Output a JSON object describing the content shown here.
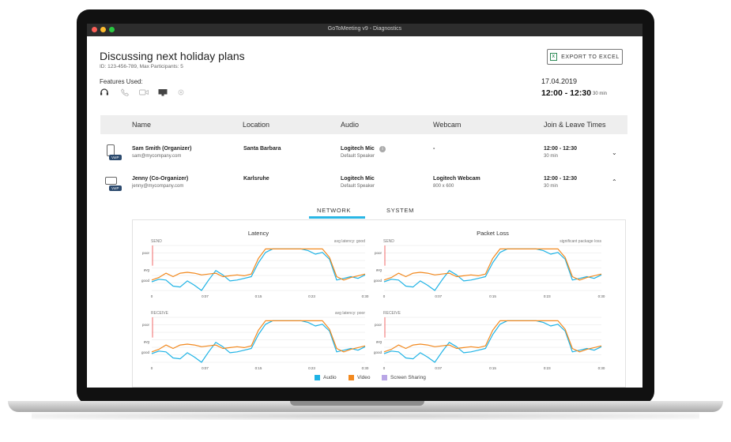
{
  "window": {
    "title": "GoToMeeting v9 - Diagnostics"
  },
  "meeting": {
    "title": "Discussing next holiday plans",
    "meta": "ID: 123-456-789, Max Participants: 5",
    "features_label": "Features Used:",
    "date": "17.04.2019",
    "time": "12:00 - 12:30",
    "duration": "30 min"
  },
  "toolbar": {
    "export_label": "EXPORT TO EXCEL",
    "excel_icon": "X"
  },
  "table": {
    "headers": [
      "Name",
      "Location",
      "Audio",
      "Webcam",
      "Join & Leave Times"
    ],
    "rows": [
      {
        "name": "Sam Smith (Organizer)",
        "email": "sam@mycompany.com",
        "badge": "VoIP",
        "location": "Santa Barbara",
        "audio": "Logitech Mic",
        "audio_sub": "Default Speaker",
        "webcam": "-",
        "webcam_sub": "",
        "times": "12:00 - 12:30",
        "duration": "30 min",
        "device": "phone-icon"
      },
      {
        "name": "Jenny (Co-Organizer)",
        "email": "jenny@mycompany.com",
        "badge": "VoIP",
        "location": "Karlsruhe",
        "audio": "Logitech Mic",
        "audio_sub": "Default Speaker",
        "webcam": "Logitech Webcam",
        "webcam_sub": "800 x 600",
        "times": "12:00 - 12:30",
        "duration": "30 min",
        "device": "laptop-icon"
      }
    ]
  },
  "tabs": {
    "network": "NETWORK",
    "system": "SYSTEM"
  },
  "colors": {
    "audio": "#1fb3e5",
    "video": "#f2891f",
    "screen_sharing": "#b9a6e6",
    "accent": "#29b6e5"
  },
  "legend": {
    "audio": "Audio",
    "video": "Video",
    "screen_sharing": "Screen Sharing"
  },
  "chart_data": [
    {
      "type": "line",
      "title": "Latency",
      "subtitle": "SEND",
      "annotation": "avg latency: good",
      "yticks": [
        "poor",
        "avg",
        "good"
      ],
      "xticks": [
        "0",
        "0:07",
        "0:15",
        "0:23",
        "0:30"
      ],
      "x": [
        0,
        1,
        2,
        3,
        4,
        5,
        6,
        7,
        8,
        9,
        10,
        11,
        12,
        13,
        14,
        15,
        16,
        17,
        18,
        19,
        20,
        21,
        22,
        23,
        24,
        25,
        26,
        27,
        28,
        29,
        30
      ],
      "series": [
        {
          "name": "Audio",
          "values": [
            0.5,
            0.65,
            0.6,
            0.25,
            0.2,
            0.55,
            0.3,
            0.0,
            0.6,
            1.15,
            0.9,
            0.55,
            0.6,
            0.7,
            0.8,
            1.6,
            2.2,
            2.4,
            2.4,
            2.4,
            2.4,
            2.4,
            2.3,
            2.1,
            2.2,
            1.8,
            0.6,
            0.7,
            0.8,
            0.7,
            0.9
          ]
        },
        {
          "name": "Video",
          "values": [
            0.6,
            0.75,
            1.0,
            0.8,
            1.0,
            1.05,
            1.0,
            0.9,
            0.95,
            1.0,
            0.8,
            0.85,
            0.9,
            0.85,
            0.95,
            1.85,
            2.4,
            2.4,
            2.4,
            2.4,
            2.4,
            2.4,
            2.4,
            2.4,
            2.4,
            1.9,
            0.8,
            0.6,
            0.75,
            0.85,
            0.95
          ]
        }
      ]
    },
    {
      "type": "line",
      "title": "Packet Loss",
      "subtitle": "SEND",
      "annotation": "significant package loss",
      "yticks": [
        "poor",
        "avg",
        "good"
      ],
      "xticks": [
        "0",
        "0:07",
        "0:15",
        "0:23",
        "0:30"
      ],
      "x": [
        0,
        1,
        2,
        3,
        4,
        5,
        6,
        7,
        8,
        9,
        10,
        11,
        12,
        13,
        14,
        15,
        16,
        17,
        18,
        19,
        20,
        21,
        22,
        23,
        24,
        25,
        26,
        27,
        28,
        29,
        30
      ],
      "series": [
        {
          "name": "Audio",
          "values": [
            0.5,
            0.65,
            0.6,
            0.25,
            0.2,
            0.55,
            0.3,
            0.0,
            0.6,
            1.15,
            0.9,
            0.55,
            0.6,
            0.7,
            0.8,
            1.6,
            2.2,
            2.4,
            2.4,
            2.4,
            2.4,
            2.4,
            2.3,
            2.1,
            2.2,
            1.8,
            0.6,
            0.7,
            0.8,
            0.7,
            0.9
          ]
        },
        {
          "name": "Video",
          "values": [
            0.6,
            0.75,
            1.0,
            0.8,
            1.0,
            1.05,
            1.0,
            0.9,
            0.95,
            1.0,
            0.8,
            0.85,
            0.9,
            0.85,
            0.95,
            1.85,
            2.4,
            2.4,
            2.4,
            2.4,
            2.4,
            2.4,
            2.4,
            2.4,
            2.4,
            1.9,
            0.8,
            0.6,
            0.75,
            0.85,
            0.95
          ]
        }
      ]
    },
    {
      "type": "line",
      "title": "",
      "subtitle": "RECEIVE",
      "annotation": "avg latency: poor",
      "yticks": [
        "poor",
        "avg",
        "good"
      ],
      "xticks": [
        "0",
        "0:07",
        "0:15",
        "0:23",
        "0:30"
      ],
      "x": [
        0,
        1,
        2,
        3,
        4,
        5,
        6,
        7,
        8,
        9,
        10,
        11,
        12,
        13,
        14,
        15,
        16,
        17,
        18,
        19,
        20,
        21,
        22,
        23,
        24,
        25,
        26,
        27,
        28,
        29,
        30
      ],
      "series": [
        {
          "name": "Audio",
          "values": [
            0.5,
            0.65,
            0.6,
            0.25,
            0.2,
            0.55,
            0.3,
            0.0,
            0.6,
            1.15,
            0.9,
            0.55,
            0.6,
            0.7,
            0.8,
            1.6,
            2.2,
            2.4,
            2.4,
            2.4,
            2.4,
            2.4,
            2.3,
            2.1,
            2.2,
            1.8,
            0.6,
            0.7,
            0.8,
            0.7,
            0.9
          ]
        },
        {
          "name": "Video",
          "values": [
            0.6,
            0.75,
            1.0,
            0.8,
            1.0,
            1.05,
            1.0,
            0.9,
            0.95,
            1.0,
            0.8,
            0.85,
            0.9,
            0.85,
            0.95,
            1.85,
            2.4,
            2.4,
            2.4,
            2.4,
            2.4,
            2.4,
            2.4,
            2.4,
            2.4,
            1.9,
            0.8,
            0.6,
            0.75,
            0.85,
            0.95
          ]
        }
      ]
    },
    {
      "type": "line",
      "title": "",
      "subtitle": "RECEIVE",
      "annotation": "",
      "yticks": [
        "poor",
        "avg",
        "good"
      ],
      "xticks": [
        "0",
        "0:07",
        "0:15",
        "0:23",
        "0:30"
      ],
      "x": [
        0,
        1,
        2,
        3,
        4,
        5,
        6,
        7,
        8,
        9,
        10,
        11,
        12,
        13,
        14,
        15,
        16,
        17,
        18,
        19,
        20,
        21,
        22,
        23,
        24,
        25,
        26,
        27,
        28,
        29,
        30
      ],
      "series": [
        {
          "name": "Audio",
          "values": [
            0.5,
            0.65,
            0.6,
            0.25,
            0.2,
            0.55,
            0.3,
            0.0,
            0.6,
            1.15,
            0.9,
            0.55,
            0.6,
            0.7,
            0.8,
            1.6,
            2.2,
            2.4,
            2.4,
            2.4,
            2.4,
            2.4,
            2.3,
            2.1,
            2.2,
            1.8,
            0.6,
            0.7,
            0.8,
            0.7,
            0.9
          ]
        },
        {
          "name": "Video",
          "values": [
            0.6,
            0.75,
            1.0,
            0.8,
            1.0,
            1.05,
            1.0,
            0.9,
            0.95,
            1.0,
            0.8,
            0.85,
            0.9,
            0.85,
            0.95,
            1.85,
            2.4,
            2.4,
            2.4,
            2.4,
            2.4,
            2.4,
            2.4,
            2.4,
            2.4,
            1.9,
            0.8,
            0.6,
            0.75,
            0.85,
            0.95
          ]
        }
      ]
    }
  ]
}
